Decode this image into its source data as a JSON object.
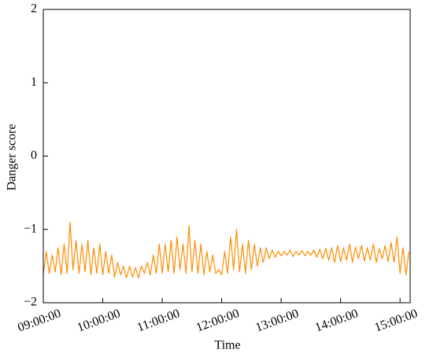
{
  "chart_data": {
    "type": "line",
    "xlabel": "Time",
    "ylabel": "Danger score",
    "xlim": [
      9,
      15.17
    ],
    "ylim": [
      -2,
      2
    ],
    "yticks": [
      {
        "value": -2,
        "label": "−2"
      },
      {
        "value": -1,
        "label": "−1"
      },
      0,
      1,
      2
    ],
    "xticks": [
      {
        "value": 9,
        "label": "09:00:00"
      },
      {
        "value": 10,
        "label": "10:00:00"
      },
      {
        "value": 11,
        "label": "11:00:00"
      },
      {
        "value": 12,
        "label": "12:00:00"
      },
      {
        "value": 13,
        "label": "13:00:00"
      },
      {
        "value": 14,
        "label": "14:00:00"
      },
      {
        "value": 15,
        "label": "15:00:00"
      }
    ],
    "x": [
      9.0,
      9.05,
      9.1,
      9.15,
      9.2,
      9.25,
      9.3,
      9.35,
      9.4,
      9.45,
      9.5,
      9.55,
      9.6,
      9.65,
      9.7,
      9.75,
      9.8,
      9.85,
      9.9,
      9.95,
      10.0,
      10.05,
      10.1,
      10.15,
      10.2,
      10.25,
      10.3,
      10.35,
      10.4,
      10.45,
      10.5,
      10.55,
      10.6,
      10.65,
      10.7,
      10.75,
      10.8,
      10.85,
      10.9,
      10.95,
      11.0,
      11.05,
      11.1,
      11.15,
      11.2,
      11.25,
      11.3,
      11.35,
      11.4,
      11.45,
      11.5,
      11.55,
      11.6,
      11.65,
      11.7,
      11.75,
      11.8,
      11.85,
      11.9,
      11.95,
      12.0,
      12.05,
      12.1,
      12.15,
      12.2,
      12.25,
      12.3,
      12.35,
      12.4,
      12.45,
      12.5,
      12.55,
      12.6,
      12.65,
      12.7,
      12.75,
      12.8,
      12.85,
      12.9,
      12.95,
      13.0,
      13.05,
      13.1,
      13.15,
      13.2,
      13.25,
      13.3,
      13.35,
      13.4,
      13.45,
      13.5,
      13.55,
      13.6,
      13.65,
      13.7,
      13.75,
      13.8,
      13.85,
      13.9,
      13.95,
      14.0,
      14.05,
      14.1,
      14.15,
      14.2,
      14.25,
      14.3,
      14.35,
      14.4,
      14.45,
      14.5,
      14.55,
      14.6,
      14.65,
      14.7,
      14.75,
      14.8,
      14.85,
      14.9,
      14.95,
      15.0,
      15.05,
      15.1,
      15.15
    ],
    "series": [
      {
        "color": "#ff8c00",
        "values": [
          -1.62,
          -1.3,
          -1.6,
          -1.35,
          -1.58,
          -1.25,
          -1.62,
          -1.2,
          -1.6,
          -0.9,
          -1.55,
          -1.15,
          -1.6,
          -1.2,
          -1.58,
          -1.15,
          -1.62,
          -1.25,
          -1.6,
          -1.2,
          -1.62,
          -1.3,
          -1.6,
          -1.35,
          -1.65,
          -1.45,
          -1.62,
          -1.5,
          -1.66,
          -1.5,
          -1.65,
          -1.52,
          -1.66,
          -1.5,
          -1.6,
          -1.45,
          -1.62,
          -1.35,
          -1.6,
          -1.2,
          -1.6,
          -1.2,
          -1.58,
          -1.15,
          -1.6,
          -1.1,
          -1.55,
          -1.2,
          -1.6,
          -0.95,
          -1.58,
          -1.15,
          -1.6,
          -1.2,
          -1.62,
          -1.3,
          -1.58,
          -1.35,
          -1.6,
          -1.55,
          -1.62,
          -1.3,
          -1.6,
          -1.1,
          -1.55,
          -1.0,
          -1.58,
          -1.2,
          -1.6,
          -1.15,
          -1.55,
          -1.2,
          -1.5,
          -1.25,
          -1.45,
          -1.25,
          -1.4,
          -1.28,
          -1.38,
          -1.3,
          -1.36,
          -1.3,
          -1.35,
          -1.28,
          -1.37,
          -1.3,
          -1.35,
          -1.29,
          -1.36,
          -1.3,
          -1.35,
          -1.28,
          -1.38,
          -1.27,
          -1.4,
          -1.26,
          -1.42,
          -1.25,
          -1.45,
          -1.22,
          -1.44,
          -1.25,
          -1.42,
          -1.2,
          -1.45,
          -1.24,
          -1.4,
          -1.22,
          -1.43,
          -1.25,
          -1.42,
          -1.2,
          -1.45,
          -1.26,
          -1.4,
          -1.22,
          -1.44,
          -1.18,
          -1.45,
          -1.1,
          -1.6,
          -1.25,
          -1.62,
          -1.3
        ]
      }
    ]
  }
}
